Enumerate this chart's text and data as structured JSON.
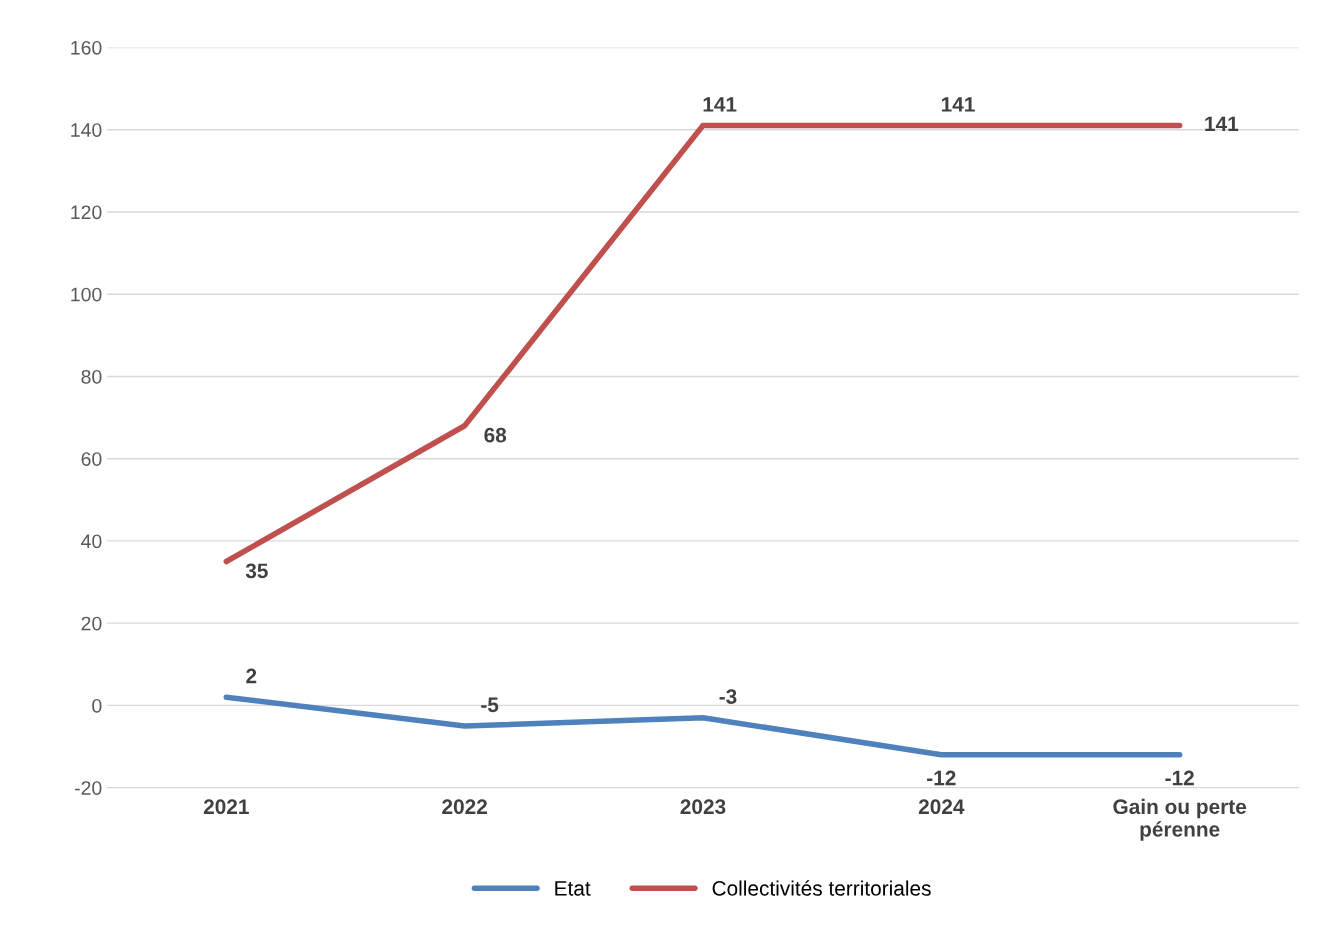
{
  "chart_data": {
    "type": "line",
    "categories": [
      "2021",
      "2022",
      "2023",
      "2024",
      "Gain ou perte\npérenne"
    ],
    "series": [
      {
        "name": "Etat",
        "color": "#4f81bd",
        "values": [
          2,
          -5,
          -3,
          -12,
          -12
        ]
      },
      {
        "name": "Collectivités territoriales",
        "color": "#c0504d",
        "values": [
          35,
          68,
          141,
          141,
          141
        ]
      }
    ],
    "ylim": [
      -20,
      160
    ],
    "yticks": [
      -20,
      0,
      20,
      40,
      60,
      80,
      100,
      120,
      140,
      160
    ],
    "grid": "y",
    "legend": "bottom",
    "data_labels": true,
    "marker": "none",
    "line_style": "solid"
  }
}
